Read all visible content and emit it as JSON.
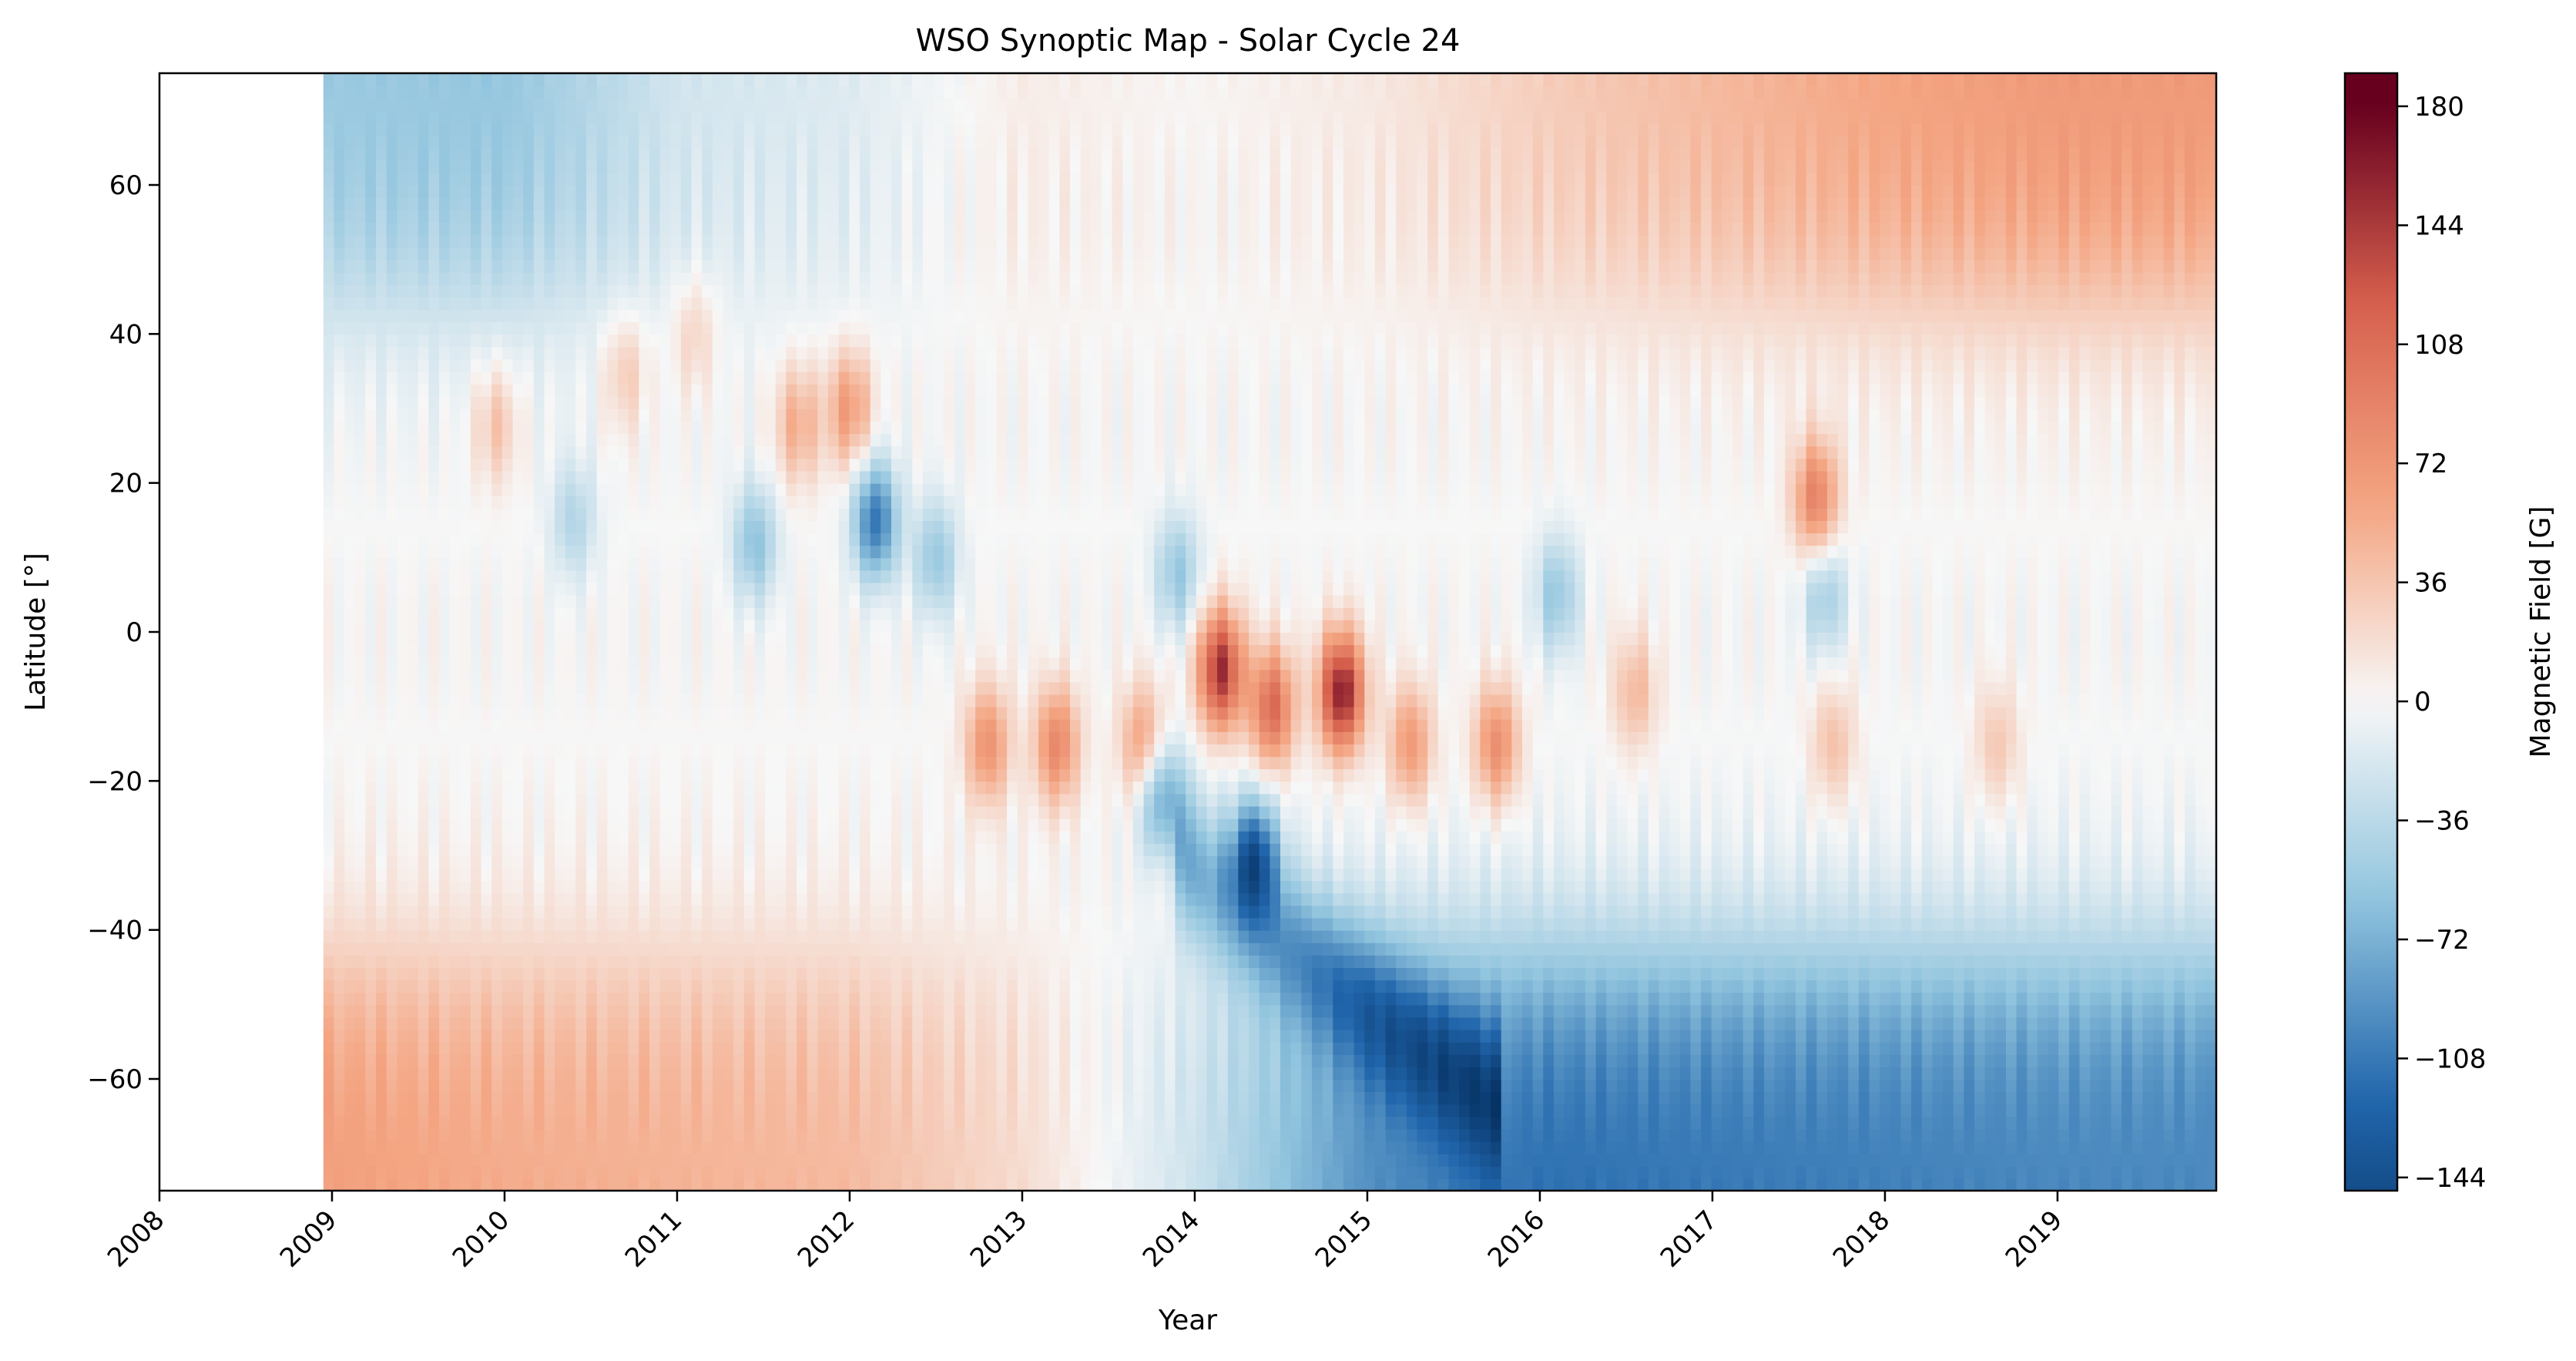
{
  "chart_data": {
    "type": "heatmap",
    "title": "WSO Synoptic Map - Solar Cycle 24",
    "xlabel": "Year",
    "ylabel": "Latitude [°]",
    "colorbar_label": "Magnetic Field [G]",
    "colormap": "RdBu_r",
    "xlim": [
      2008.0,
      2019.92
    ],
    "ylim": [
      -75,
      75
    ],
    "data_start_year": 2008.95,
    "x_ticks": [
      "2008",
      "2009",
      "2010",
      "2011",
      "2012",
      "2013",
      "2014",
      "2015",
      "2016",
      "2017",
      "2018",
      "2019"
    ],
    "y_ticks": [
      -60,
      -40,
      -20,
      0,
      20,
      40,
      60
    ],
    "y_tick_labels": [
      "−60",
      "−40",
      "−20",
      "0",
      "20",
      "40",
      "60"
    ],
    "colorbar_range": [
      -148,
      190
    ],
    "colorbar_ticks": [
      -144,
      -108,
      -72,
      -36,
      0,
      36,
      72,
      108,
      144,
      180
    ],
    "colorbar_tick_labels": [
      "−144",
      "−108",
      "−72",
      "−36",
      "0",
      "36",
      "72",
      "108",
      "144",
      "180"
    ],
    "colors": {
      "strong_negative": "#053061",
      "negative": "#2166ac",
      "weak_negative": "#92c5de",
      "zero": "#f7f7f7",
      "weak_positive": "#f4a582",
      "positive": "#d6604d",
      "strong_positive": "#67001f"
    },
    "features": {
      "north_pole_field_G": [
        {
          "year": 2009.0,
          "value": -55
        },
        {
          "year": 2010.0,
          "value": -58
        },
        {
          "year": 2011.0,
          "value": -22
        },
        {
          "year": 2012.0,
          "value": -15
        },
        {
          "year": 2013.0,
          "value": 8
        },
        {
          "year": 2014.0,
          "value": 2
        },
        {
          "year": 2015.0,
          "value": 10
        },
        {
          "year": 2016.0,
          "value": 30
        },
        {
          "year": 2017.0,
          "value": 45
        },
        {
          "year": 2018.0,
          "value": 60
        },
        {
          "year": 2019.0,
          "value": 70
        }
      ],
      "south_pole_field_G": [
        {
          "year": 2009.0,
          "value": 65
        },
        {
          "year": 2010.0,
          "value": 55
        },
        {
          "year": 2011.0,
          "value": 50
        },
        {
          "year": 2012.0,
          "value": 45
        },
        {
          "year": 2013.0,
          "value": 20
        },
        {
          "year": 2014.0,
          "value": -25
        },
        {
          "year": 2015.0,
          "value": -95
        },
        {
          "year": 2016.0,
          "value": -115
        },
        {
          "year": 2017.0,
          "value": -110
        },
        {
          "year": 2018.0,
          "value": -105
        },
        {
          "year": 2019.0,
          "value": -100
        }
      ],
      "active_region_spots": [
        {
          "year": 2009.95,
          "lat": 28,
          "value": 40
        },
        {
          "year": 2010.4,
          "lat": 15,
          "value": -40
        },
        {
          "year": 2010.7,
          "lat": 35,
          "value": 35
        },
        {
          "year": 2011.1,
          "lat": 40,
          "value": 30
        },
        {
          "year": 2011.45,
          "lat": 12,
          "value": -60
        },
        {
          "year": 2011.7,
          "lat": 28,
          "value": 55
        },
        {
          "year": 2012.0,
          "lat": 30,
          "value": 70
        },
        {
          "year": 2012.15,
          "lat": 15,
          "value": -110
        },
        {
          "year": 2012.5,
          "lat": 10,
          "value": -55
        },
        {
          "year": 2012.8,
          "lat": -15,
          "value": 75
        },
        {
          "year": 2013.2,
          "lat": -15,
          "value": 85
        },
        {
          "year": 2013.7,
          "lat": -15,
          "value": 70
        },
        {
          "year": 2014.15,
          "lat": -5,
          "value": 150
        },
        {
          "year": 2014.45,
          "lat": -10,
          "value": 110
        },
        {
          "year": 2014.85,
          "lat": -8,
          "value": 165
        },
        {
          "year": 2014.35,
          "lat": -30,
          "value": -115
        },
        {
          "year": 2013.8,
          "lat": -22,
          "value": -85
        },
        {
          "year": 2013.9,
          "lat": 8,
          "value": -55
        },
        {
          "year": 2015.25,
          "lat": -15,
          "value": 70
        },
        {
          "year": 2015.75,
          "lat": -15,
          "value": 80
        },
        {
          "year": 2016.1,
          "lat": 5,
          "value": -55
        },
        {
          "year": 2016.55,
          "lat": -8,
          "value": 45
        },
        {
          "year": 2017.6,
          "lat": 18,
          "value": 90
        },
        {
          "year": 2017.65,
          "lat": 5,
          "value": -50
        },
        {
          "year": 2017.7,
          "lat": -15,
          "value": 40
        },
        {
          "year": 2018.65,
          "lat": -15,
          "value": 35
        }
      ]
    }
  }
}
